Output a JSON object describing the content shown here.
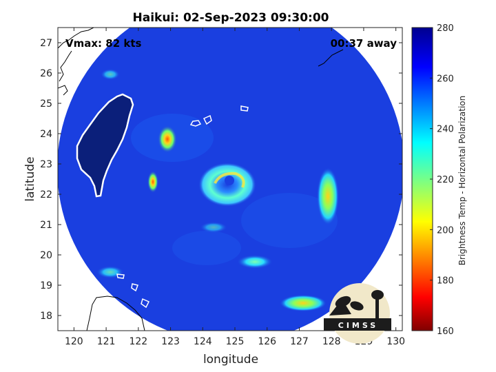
{
  "title": "Haikui: 02-Sep-2023 09:30:00",
  "annotations": {
    "vmax": "Vmax: 82 kts",
    "time_away": "00:37 away"
  },
  "axes": {
    "xlabel": "longitude",
    "ylabel": "latitude",
    "xlim": [
      119.5,
      130.2
    ],
    "ylim": [
      17.5,
      27.5
    ],
    "xticks": [
      "120",
      "121",
      "122",
      "123",
      "124",
      "125",
      "126",
      "127",
      "128",
      "129",
      "130"
    ],
    "yticks": [
      "18",
      "19",
      "20",
      "21",
      "22",
      "23",
      "24",
      "25",
      "26",
      "27"
    ]
  },
  "colorbar": {
    "label": "Brightness Temp - Horizontal Polarization",
    "range": [
      160,
      280
    ],
    "ticks": [
      "280",
      "260",
      "240",
      "220",
      "200",
      "180",
      "160"
    ],
    "colormap": "jet"
  },
  "logo": {
    "text": "CIMSS"
  },
  "colors": {
    "background_field": "#1a3fe0",
    "land": "#0b1f7a",
    "coast": "#ffffff"
  }
}
